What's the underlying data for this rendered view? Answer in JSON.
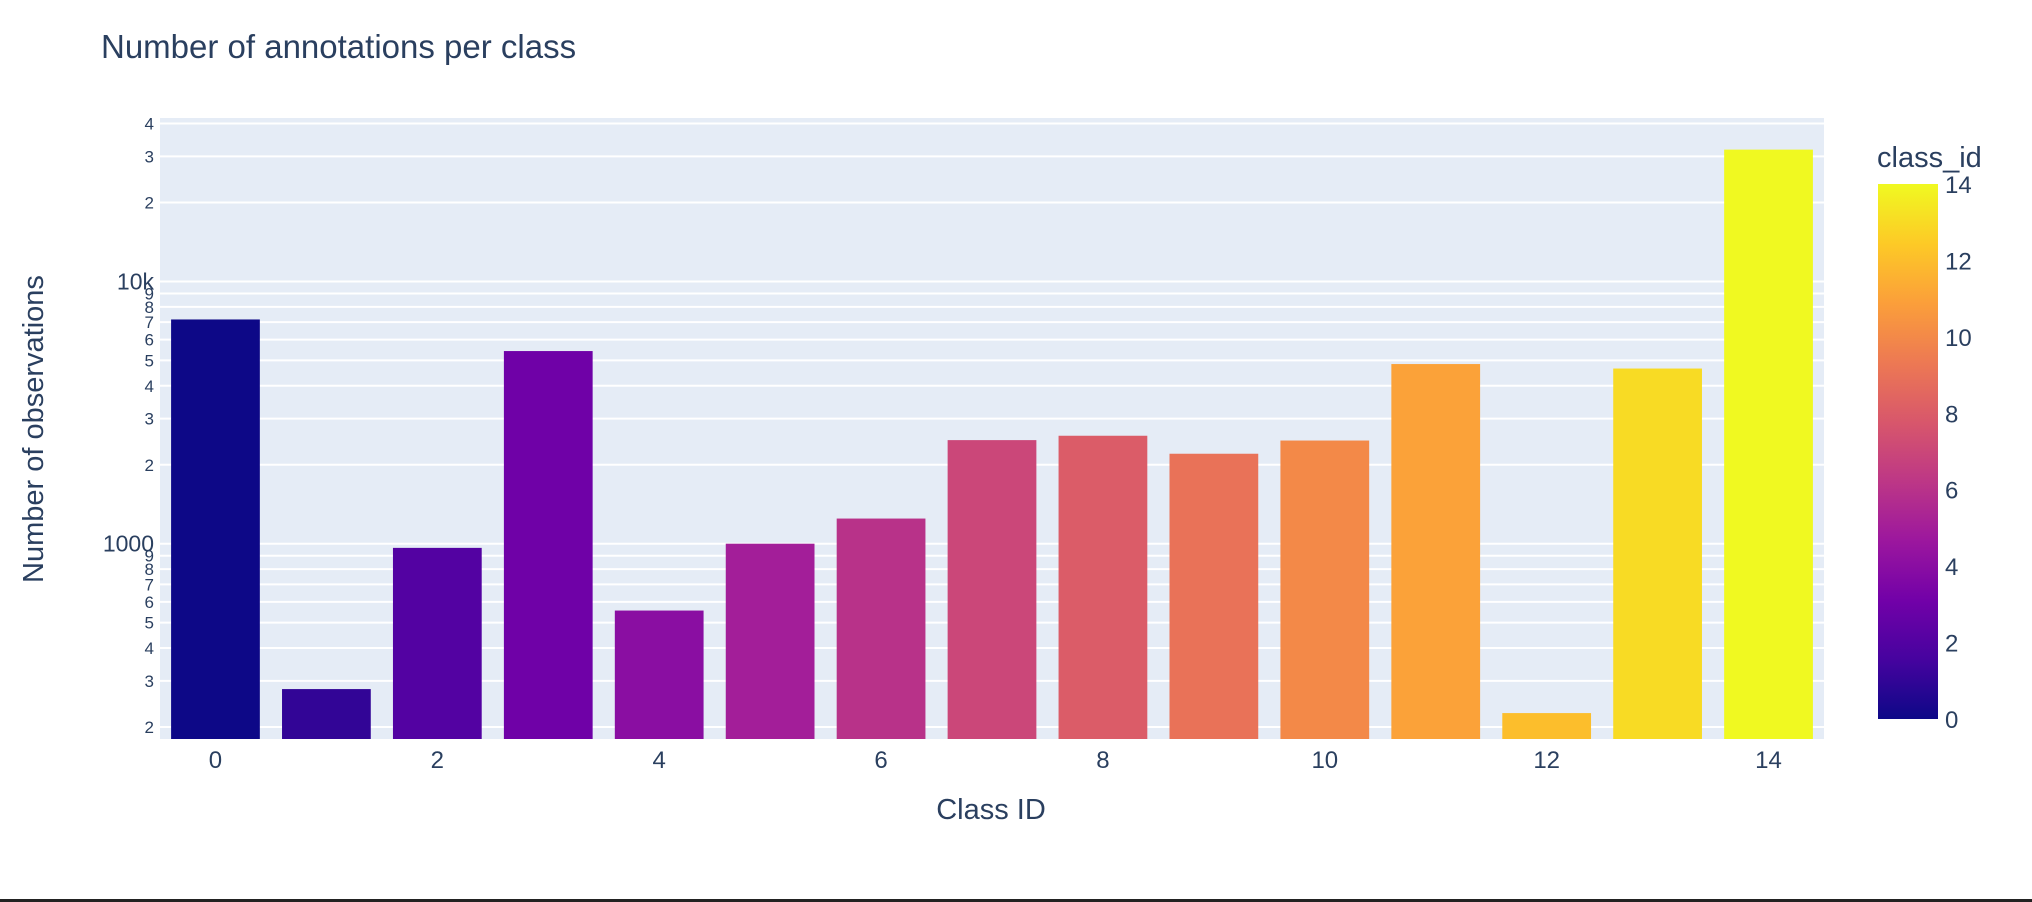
{
  "chart_data": {
    "type": "bar",
    "title": "Number of annotations per class",
    "xlabel": "Class ID",
    "ylabel": "Number of observations",
    "y_scale": "log",
    "ylim": [
      180,
      42000
    ],
    "xlim": [
      -0.5,
      14.5
    ],
    "grid": true,
    "categories": [
      0,
      1,
      2,
      3,
      4,
      5,
      6,
      7,
      8,
      9,
      10,
      11,
      12,
      13,
      14
    ],
    "values": [
      7162,
      279,
      964,
      5427,
      556,
      1000,
      1247,
      2483,
      2580,
      2203,
      2474,
      4842,
      226,
      4655,
      31818
    ],
    "x_tick_labels": [
      "0",
      "2",
      "4",
      "6",
      "8",
      "10",
      "12",
      "14"
    ],
    "y_tick_labels_major": [
      "1000",
      "10k"
    ],
    "y_tick_labels_minor": [
      "2",
      "3",
      "4",
      "5",
      "6",
      "7",
      "8",
      "9"
    ],
    "colorbar": {
      "title": "class_id",
      "range": [
        0,
        14
      ],
      "tick_labels": [
        "0",
        "2",
        "4",
        "6",
        "8",
        "10",
        "12",
        "14"
      ],
      "colorscale": [
        "#0d0887",
        "#46039f",
        "#7201a8",
        "#9c179e",
        "#bd3786",
        "#d8576b",
        "#ed7953",
        "#fb9f3a",
        "#fdca26",
        "#f0f921"
      ]
    },
    "colors": {
      "plot_background": "#e5ecf6",
      "gridline": "#ffffff",
      "text": "#2a3f5f"
    }
  }
}
